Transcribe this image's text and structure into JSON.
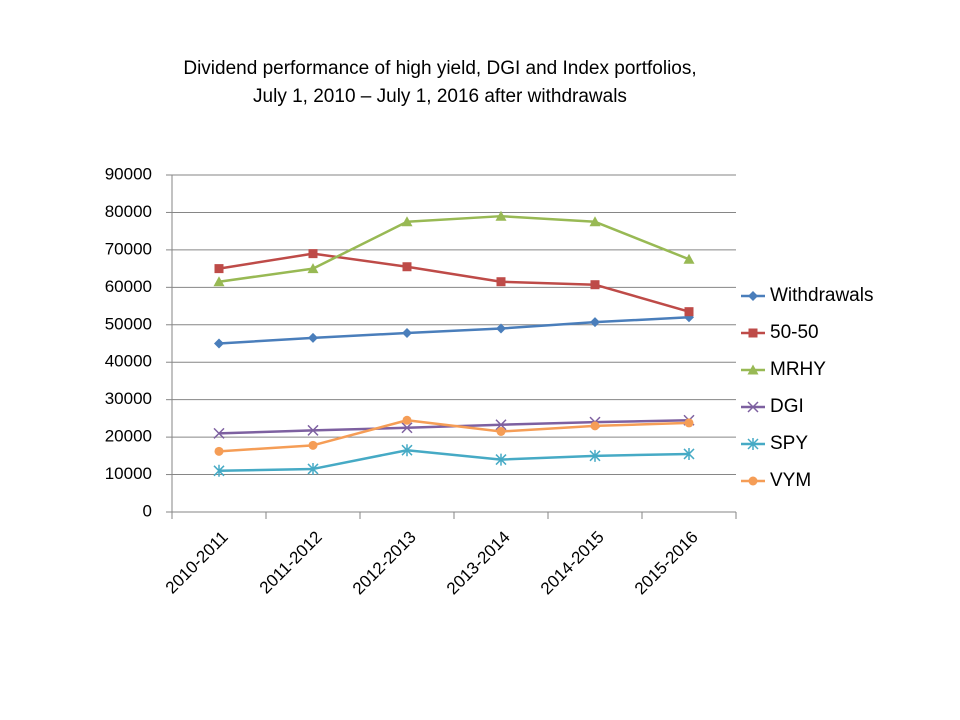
{
  "chart_data": {
    "type": "line",
    "title": "Dividend performance of high yield, DGI and Index portfolios,",
    "subtitle": "July 1, 2010 – July 1, 2016 after withdrawals",
    "xlabel": "",
    "ylabel": "",
    "categories": [
      "2010-2011",
      "2011-2012",
      "2012-2013",
      "2013-2014",
      "2014-2015",
      "2015-2016"
    ],
    "ylim": [
      0,
      90000
    ],
    "yticks": [
      "0",
      "10000",
      "20000",
      "30000",
      "40000",
      "50000",
      "60000",
      "70000",
      "80000",
      "90000"
    ],
    "grid": "horizontal",
    "legend_position": "right",
    "series": [
      {
        "name": "Withdrawals",
        "color": "#4a7ebb",
        "marker": "diamond",
        "values": [
          45000,
          46500,
          47800,
          49000,
          50700,
          52000
        ]
      },
      {
        "name": "50-50",
        "color": "#be4b48",
        "marker": "square",
        "values": [
          65000,
          69000,
          65500,
          61500,
          60700,
          53500
        ]
      },
      {
        "name": "MRHY",
        "color": "#98b954",
        "marker": "triangle",
        "values": [
          61500,
          65000,
          77500,
          79000,
          77500,
          67500
        ]
      },
      {
        "name": "DGI",
        "color": "#7d60a0",
        "marker": "x",
        "values": [
          21000,
          21800,
          22500,
          23300,
          24000,
          24500
        ]
      },
      {
        "name": "SPY",
        "color": "#46aac5",
        "marker": "star",
        "values": [
          11000,
          11500,
          16500,
          14000,
          15000,
          15500
        ]
      },
      {
        "name": "VYM",
        "color": "#f59d56",
        "marker": "circle",
        "values": [
          16200,
          17800,
          24500,
          21500,
          23000,
          23800
        ]
      }
    ]
  }
}
